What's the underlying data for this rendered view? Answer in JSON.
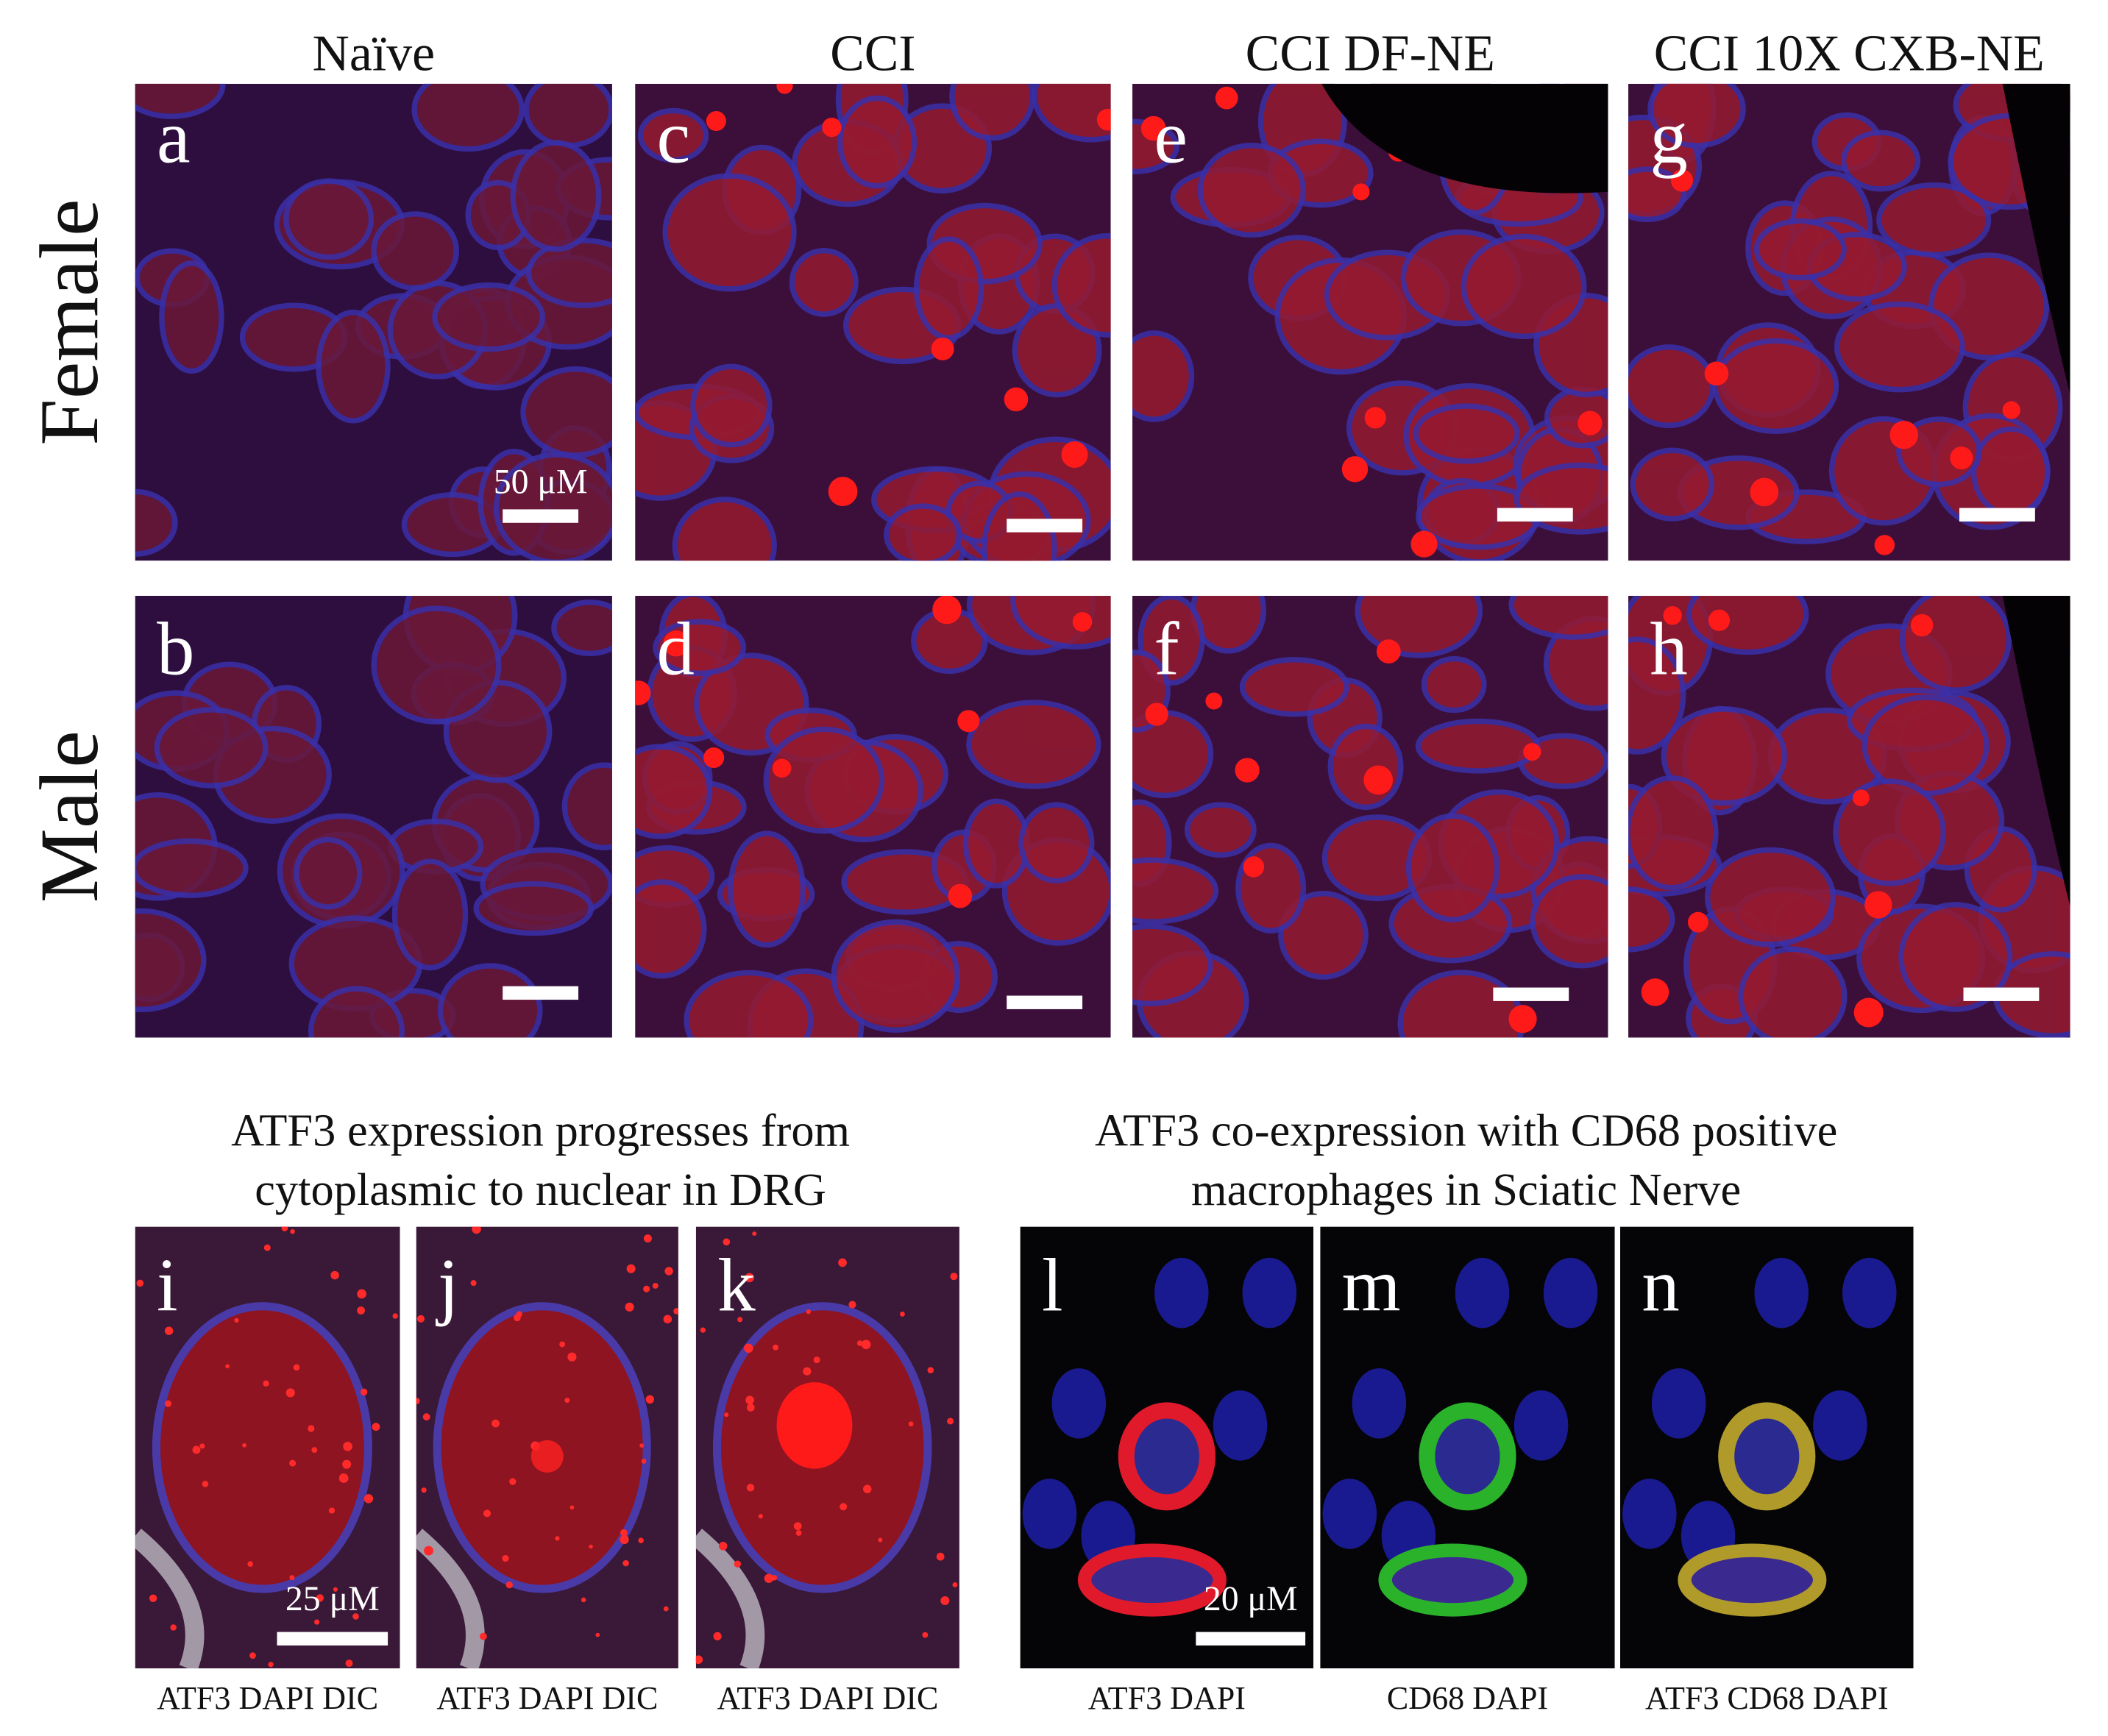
{
  "column_headers": [
    "Naïve",
    "CCI",
    "CCI DF-NE",
    "CCI 10X CXB-NE"
  ],
  "row_labels": [
    "Female",
    "Male"
  ],
  "top_panels": [
    [
      "a",
      "c",
      "e",
      "g"
    ],
    [
      "b",
      "d",
      "f",
      "h"
    ]
  ],
  "top_scale_label": "50 μM",
  "sections": [
    {
      "title_lines": [
        "ATF3 expression progresses from",
        "cytoplasmic to nuclear in DRG"
      ],
      "scale_label": "25 μM",
      "panels": [
        {
          "label": "i",
          "caption": "ATF3 DAPI DIC"
        },
        {
          "label": "j",
          "caption": "ATF3 DAPI DIC"
        },
        {
          "label": "k",
          "caption": "ATF3 DAPI DIC"
        }
      ]
    },
    {
      "title_lines": [
        "ATF3 co-expression with CD68 positive",
        "macrophages in Sciatic Nerve"
      ],
      "scale_label": "20 μM",
      "panels": [
        {
          "label": "l",
          "caption": "ATF3 DAPI"
        },
        {
          "label": "m",
          "caption": "CD68 DAPI"
        },
        {
          "label": "n",
          "caption": "ATF3 CD68 DAPI"
        }
      ]
    }
  ]
}
